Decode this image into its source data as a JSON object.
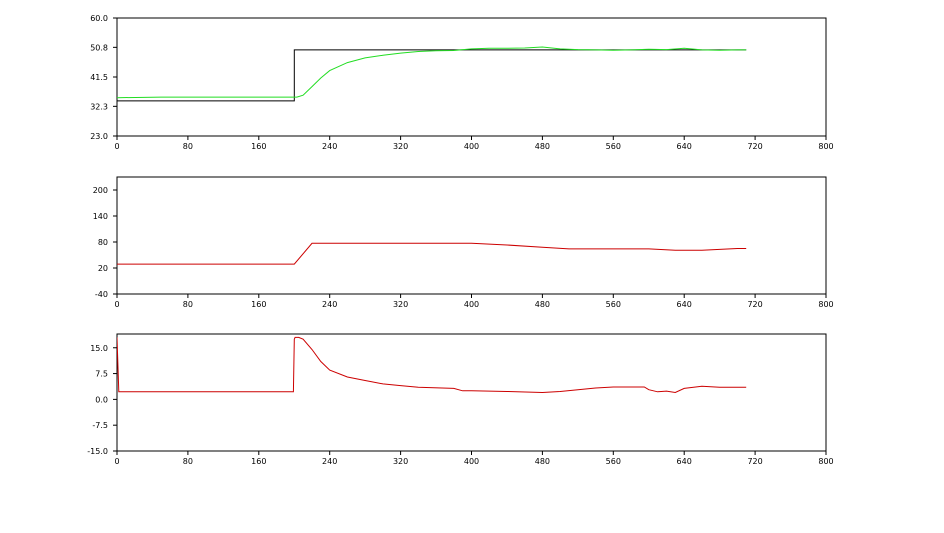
{
  "chart_data": [
    {
      "type": "line",
      "title": "",
      "xlabel": "",
      "ylabel": "",
      "xlim": [
        0,
        800
      ],
      "ylim": [
        23.0,
        60.0
      ],
      "x_ticks": [
        "0",
        "80",
        "160",
        "240",
        "320",
        "400",
        "480",
        "560",
        "640",
        "720",
        "800"
      ],
      "y_ticks": [
        "23.0",
        "32.3",
        "41.5",
        "50.8",
        "60.0"
      ],
      "grid": false,
      "series": [
        {
          "color": "#000000",
          "x": [
            0,
            200,
            200,
            710
          ],
          "y": [
            34.0,
            34.0,
            50.0,
            50.0
          ]
        },
        {
          "color": "#22dd22",
          "x": [
            0,
            50,
            100,
            150,
            198,
            203,
            210,
            220,
            230,
            240,
            260,
            280,
            300,
            320,
            340,
            360,
            380,
            400,
            420,
            440,
            460,
            480,
            500,
            520,
            540,
            560,
            580,
            600,
            620,
            640,
            660,
            680,
            700,
            710
          ],
          "y": [
            35.0,
            35.2,
            35.2,
            35.2,
            35.2,
            35.2,
            35.8,
            38.5,
            41.2,
            43.5,
            46.0,
            47.5,
            48.3,
            49.0,
            49.5,
            49.7,
            49.8,
            50.3,
            50.5,
            50.5,
            50.6,
            50.9,
            50.3,
            50.1,
            50.0,
            49.9,
            50.0,
            50.2,
            50.1,
            50.5,
            50.0,
            49.9,
            50.0,
            50.0
          ]
        }
      ]
    },
    {
      "type": "line",
      "title": "",
      "xlabel": "",
      "ylabel": "",
      "xlim": [
        0,
        800
      ],
      "ylim": [
        -40,
        230
      ],
      "x_ticks": [
        "0",
        "80",
        "160",
        "240",
        "320",
        "400",
        "480",
        "560",
        "640",
        "720",
        "800"
      ],
      "y_ticks": [
        "-40",
        "20",
        "80",
        "140",
        "200"
      ],
      "grid": false,
      "series": [
        {
          "color": "#cc0000",
          "x": [
            0,
            200,
            220,
            400,
            440,
            480,
            510,
            560,
            600,
            630,
            660,
            700,
            710
          ],
          "y": [
            29,
            29,
            77,
            77,
            73,
            68,
            64,
            64,
            64,
            61,
            61,
            65,
            65
          ]
        }
      ]
    },
    {
      "type": "line",
      "title": "",
      "xlabel": "",
      "ylabel": "",
      "xlim": [
        0,
        800
      ],
      "ylim": [
        -15.0,
        19.0
      ],
      "x_ticks": [
        "0",
        "80",
        "160",
        "240",
        "320",
        "400",
        "480",
        "560",
        "640",
        "720",
        "800"
      ],
      "y_ticks": [
        "-15.0",
        "-7.5",
        "0.0",
        "7.5",
        "15.0"
      ],
      "grid": false,
      "series": [
        {
          "color": "#cc0000",
          "x": [
            0,
            2,
            4,
            50,
            100,
            150,
            199,
            200,
            201,
            205,
            210,
            220,
            230,
            240,
            260,
            280,
            300,
            320,
            340,
            380,
            390,
            400,
            440,
            480,
            500,
            520,
            540,
            560,
            580,
            595,
            600,
            610,
            620,
            630,
            640,
            660,
            680,
            700,
            710
          ],
          "y": [
            18.0,
            2.2,
            2.2,
            2.2,
            2.2,
            2.2,
            2.2,
            17.5,
            18.0,
            18.0,
            17.5,
            14.5,
            11.0,
            8.5,
            6.5,
            5.5,
            4.5,
            4.0,
            3.5,
            3.2,
            2.5,
            2.5,
            2.3,
            2.0,
            2.3,
            2.8,
            3.3,
            3.6,
            3.6,
            3.6,
            2.8,
            2.2,
            2.4,
            2.0,
            3.2,
            3.8,
            3.5,
            3.5,
            3.5
          ]
        }
      ]
    }
  ]
}
